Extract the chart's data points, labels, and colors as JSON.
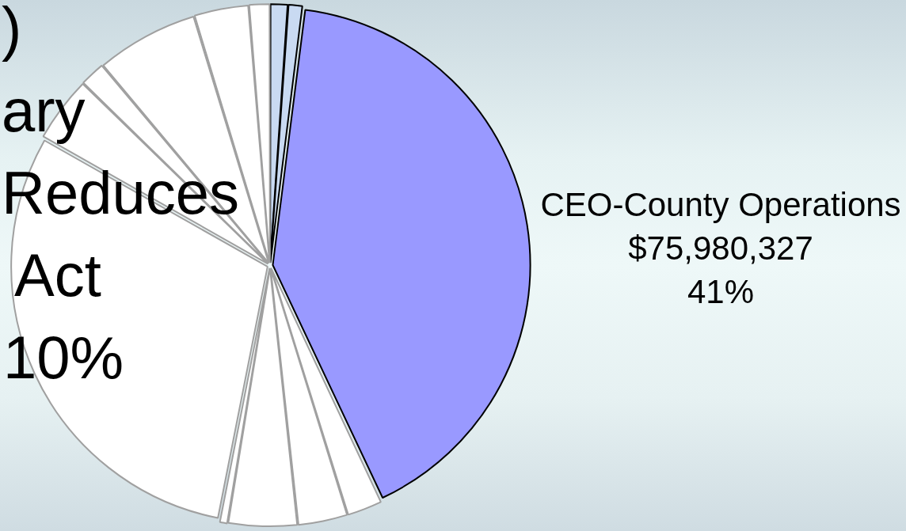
{
  "chart_data": {
    "type": "pie",
    "categories": [
      null,
      null,
      "CEO-County Operations",
      null,
      null,
      null,
      null,
      null,
      null,
      null,
      null,
      null,
      null
    ],
    "values": [
      1.1,
      0.9,
      41,
      2.2,
      3.1,
      4.3,
      0.5,
      30.1,
      4.1,
      1.6,
      6.4,
      3.4,
      1.3
    ],
    "colors": [
      "#c9daf2",
      "#c9daf2",
      "#9999ff",
      "#ffffff",
      "#ffffff",
      "#ffffff",
      "#ffffff",
      "#ffffff",
      "#ffffff",
      "#ffffff",
      "#ffffff",
      "#ffffff",
      "#ffffff"
    ],
    "value_labels": [
      null,
      null,
      "$75,980,327\n41%",
      null,
      null,
      null,
      null,
      null,
      null,
      null,
      null,
      null,
      null
    ],
    "annotations": [
      ")",
      "ary",
      "Reduces",
      "Act",
      "10%"
    ]
  }
}
